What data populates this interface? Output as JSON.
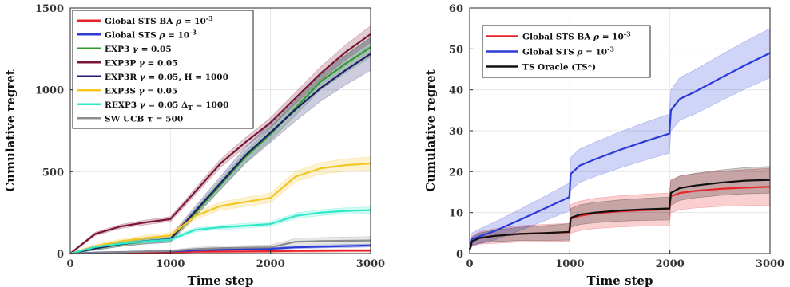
{
  "chart_data": [
    {
      "type": "line",
      "xlabel": "Time step",
      "ylabel": "Cumulative regret",
      "xlim": [
        0,
        3000
      ],
      "ylim": [
        0,
        1500
      ],
      "xticks": [
        0,
        1000,
        2000,
        3000
      ],
      "yticks": [
        0,
        500,
        1000,
        1500
      ],
      "grid": true,
      "legend_position": "top-left",
      "series": [
        {
          "name": "Global STS BA ρ = 10⁻³",
          "color": "#e8262a",
          "x": [
            0,
            250,
            500,
            750,
            1000,
            1250,
            1500,
            1750,
            2000,
            2250,
            2500,
            2750,
            3000
          ],
          "values": [
            0,
            4,
            6,
            7,
            8,
            11,
            12,
            13,
            14,
            16,
            17,
            18,
            18
          ],
          "band": [
            3,
            4,
            5,
            6,
            6,
            6,
            7,
            7,
            7,
            7,
            8,
            8,
            8
          ]
        },
        {
          "name": "Global STS ρ = 10⁻³",
          "color": "#2b3bd6",
          "x": [
            0,
            250,
            500,
            750,
            1000,
            1250,
            1500,
            1750,
            2000,
            2250,
            2500,
            2750,
            3000
          ],
          "values": [
            0,
            6,
            9,
            12,
            14,
            20,
            24,
            27,
            29,
            38,
            42,
            46,
            49
          ],
          "band": [
            2,
            3,
            4,
            4,
            5,
            6,
            6,
            6,
            7,
            8,
            8,
            9,
            9
          ]
        },
        {
          "name": "EXP3 γ = 0.05",
          "color": "#2e9d2b",
          "x": [
            0,
            250,
            500,
            750,
            1000,
            1250,
            1500,
            1750,
            2000,
            2250,
            2500,
            2750,
            3000
          ],
          "values": [
            0,
            30,
            55,
            75,
            85,
            250,
            420,
            590,
            730,
            890,
            1050,
            1160,
            1260
          ],
          "band": [
            5,
            10,
            12,
            14,
            15,
            25,
            30,
            35,
            40,
            45,
            50,
            55,
            60
          ]
        },
        {
          "name": "EXP3P γ = 0.05",
          "color": "#7b1735",
          "x": [
            0,
            250,
            500,
            750,
            1000,
            1250,
            1500,
            1750,
            2000,
            2250,
            2500,
            2750,
            3000
          ],
          "values": [
            0,
            120,
            165,
            190,
            210,
            380,
            550,
            680,
            800,
            950,
            1100,
            1230,
            1340
          ],
          "band": [
            5,
            10,
            12,
            14,
            15,
            20,
            25,
            28,
            30,
            35,
            40,
            45,
            50
          ]
        },
        {
          "name": "EXP3R γ = 0.05, H = 1000",
          "color": "#1f1b6e",
          "x": [
            0,
            250,
            500,
            750,
            1000,
            1250,
            1500,
            1750,
            2000,
            2250,
            2500,
            2750,
            3000
          ],
          "values": [
            0,
            32,
            58,
            76,
            88,
            260,
            430,
            600,
            740,
            880,
            1010,
            1120,
            1220
          ],
          "band": [
            5,
            10,
            14,
            18,
            20,
            30,
            40,
            50,
            60,
            70,
            80,
            90,
            100
          ]
        },
        {
          "name": "EXP3S γ = 0.05",
          "color": "#f3c623",
          "x": [
            0,
            250,
            500,
            750,
            1000,
            1250,
            1500,
            1750,
            2000,
            2250,
            2500,
            2750,
            3000
          ],
          "values": [
            0,
            45,
            75,
            95,
            110,
            230,
            290,
            315,
            340,
            470,
            520,
            540,
            550
          ],
          "band": [
            5,
            10,
            12,
            15,
            18,
            22,
            25,
            28,
            30,
            32,
            35,
            38,
            40
          ]
        },
        {
          "name": "REXP3 γ = 0.05 Δ_T = 1000",
          "color": "#2ee8c8",
          "x": [
            0,
            250,
            500,
            750,
            1000,
            1250,
            1500,
            1750,
            2000,
            2250,
            2500,
            2750,
            3000
          ],
          "values": [
            0,
            40,
            60,
            75,
            85,
            145,
            160,
            170,
            180,
            230,
            250,
            260,
            265
          ],
          "band": [
            4,
            6,
            8,
            9,
            10,
            12,
            13,
            14,
            15,
            17,
            18,
            19,
            20
          ]
        },
        {
          "name": "SW UCB τ = 500",
          "color": "#8c8c8c",
          "x": [
            0,
            250,
            500,
            750,
            1000,
            1250,
            1500,
            1750,
            2000,
            2250,
            2500,
            2750,
            3000
          ],
          "values": [
            0,
            4,
            8,
            12,
            16,
            28,
            33,
            36,
            38,
            72,
            76,
            78,
            80
          ],
          "band": [
            3,
            4,
            5,
            6,
            6,
            10,
            12,
            13,
            14,
            20,
            22,
            23,
            24
          ]
        }
      ]
    },
    {
      "type": "line",
      "xlabel": "Time step",
      "ylabel": "Cumulative regret",
      "xlim": [
        0,
        3000
      ],
      "ylim": [
        0,
        60
      ],
      "xticks": [
        0,
        1000,
        2000,
        3000
      ],
      "yticks": [
        0,
        10,
        20,
        30,
        40,
        50,
        60
      ],
      "grid": true,
      "legend_position": "top-left",
      "series": [
        {
          "name": "Global STS BA ρ = 10⁻³",
          "color": "#e8262a",
          "x": [
            0,
            25,
            100,
            250,
            500,
            750,
            995,
            1010,
            1100,
            1250,
            1500,
            1750,
            1995,
            2010,
            2100,
            2250,
            2500,
            2750,
            3000
          ],
          "values": [
            1,
            3,
            3.8,
            4.3,
            4.8,
            5.0,
            5.2,
            8.5,
            9.2,
            9.8,
            10.3,
            10.6,
            10.8,
            14.0,
            14.8,
            15.3,
            15.8,
            16.1,
            16.3
          ],
          "band": [
            0.5,
            1.2,
            1.5,
            1.8,
            2.0,
            2.1,
            2.2,
            3.5,
            3.6,
            3.7,
            3.8,
            3.9,
            4.0,
            4.0,
            4.1,
            4.2,
            4.3,
            4.4,
            4.5
          ]
        },
        {
          "name": "Global STS ρ = 10⁻³",
          "color": "#2b3bd6",
          "x": [
            0,
            25,
            100,
            250,
            500,
            750,
            995,
            1010,
            1100,
            1250,
            1500,
            1750,
            1995,
            2010,
            2100,
            2250,
            2500,
            2750,
            3000
          ],
          "values": [
            1,
            3.5,
            4.2,
            5.5,
            8.2,
            11.0,
            13.8,
            19.5,
            21.5,
            23.0,
            25.3,
            27.4,
            29.3,
            35.0,
            37.8,
            39.5,
            42.8,
            46.0,
            49.0
          ],
          "band": [
            0.5,
            1.5,
            1.8,
            2.2,
            2.6,
            3.0,
            3.4,
            4.0,
            4.1,
            4.2,
            4.4,
            4.6,
            4.8,
            5.0,
            5.2,
            5.4,
            5.6,
            5.8,
            6.0
          ]
        },
        {
          "name": "TS Oracle (TS*)",
          "color": "#111111",
          "x": [
            0,
            25,
            100,
            250,
            500,
            750,
            995,
            1010,
            1100,
            1250,
            1500,
            1750,
            1995,
            2010,
            2100,
            2250,
            2500,
            2750,
            3000
          ],
          "values": [
            1,
            3,
            3.8,
            4.3,
            4.8,
            5.0,
            5.3,
            8.7,
            9.5,
            10.0,
            10.5,
            10.8,
            11.0,
            14.8,
            16.0,
            16.6,
            17.3,
            17.8,
            18.0
          ],
          "band": [
            0.5,
            1.0,
            1.2,
            1.4,
            1.6,
            1.8,
            2.0,
            2.3,
            2.4,
            2.5,
            2.6,
            2.7,
            2.8,
            3.0,
            3.0,
            3.0,
            3.1,
            3.2,
            3.3
          ]
        }
      ]
    }
  ],
  "legend_labels": {
    "left": [
      [
        "Global STS BA ",
        "ρ",
        " = 10",
        "-3",
        "",
        ""
      ],
      [
        "Global STS ",
        "ρ",
        " = 10",
        "-3",
        "",
        ""
      ],
      [
        "EXP3 ",
        "γ",
        " = 0.05",
        "",
        "",
        ""
      ],
      [
        "EXP3P ",
        "γ",
        " = 0.05",
        "",
        "",
        ""
      ],
      [
        "EXP3R ",
        "γ",
        " = 0.05, H = 1000",
        "",
        "",
        ""
      ],
      [
        "EXP3S ",
        "γ",
        " = 0.05",
        "",
        "",
        ""
      ],
      [
        "REXP3 ",
        "γ",
        " = 0.05 Δ",
        "",
        "T",
        " = 1000"
      ],
      [
        "SW UCB ",
        "τ",
        " = 500",
        "",
        "",
        ""
      ]
    ],
    "right": [
      [
        "Global STS BA ",
        "ρ",
        " = 10",
        "-3",
        "",
        ""
      ],
      [
        "Global STS ",
        "ρ",
        " = 10",
        "-3",
        "",
        ""
      ],
      [
        "TS Oracle (TS*)",
        "",
        "",
        "",
        "",
        ""
      ]
    ]
  }
}
